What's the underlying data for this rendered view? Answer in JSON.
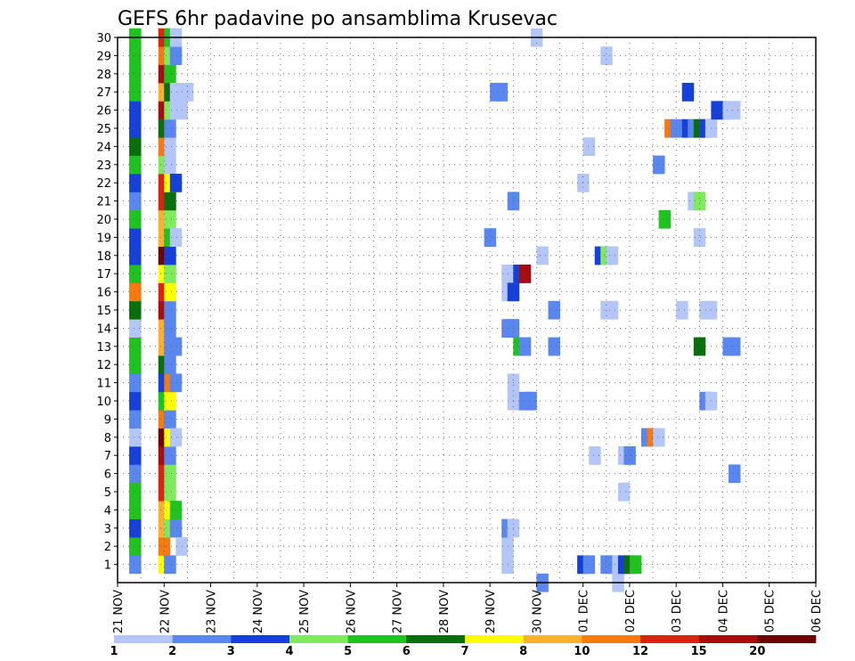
{
  "chart_data": {
    "type": "heatmap",
    "title": "GEFS 6hr padavine po ansamblima Krusevac",
    "ylim": [
      0,
      30
    ],
    "y_ticks": [
      "1",
      "2",
      "3",
      "4",
      "5",
      "6",
      "7",
      "8",
      "9",
      "10",
      "11",
      "12",
      "13",
      "14",
      "15",
      "16",
      "17",
      "18",
      "19",
      "20",
      "21",
      "22",
      "23",
      "24",
      "25",
      "26",
      "27",
      "28",
      "29",
      "30"
    ],
    "x_ticks": [
      "21 NOV",
      "22 NOV",
      "23 NOV",
      "24 NOV",
      "25 NOV",
      "26 NOV",
      "27 NOV",
      "28 NOV",
      "29 NOV",
      "30 NOV",
      "01 DEC",
      "02 DEC",
      "03 DEC",
      "04 DEC",
      "05 DEC",
      "06 DEC"
    ],
    "time_step_hours": 6,
    "grid": true,
    "colorbar": {
      "labels": [
        "1",
        "2",
        "3",
        "4",
        "5",
        "6",
        "7",
        "8",
        "10",
        "12",
        "15",
        "20"
      ],
      "colors": [
        "#b3c6f7",
        "#5a87ee",
        "#1640d8",
        "#7fea5c",
        "#1fc21f",
        "#0a6e0a",
        "#ffff00",
        "#fcb030",
        "#f57a10",
        "#d9250f",
        "#a50e0e",
        "#6b0505"
      ]
    },
    "cells": [
      [
        1,
        1,
        2
      ],
      [
        1,
        2,
        5
      ],
      [
        1,
        3,
        3
      ],
      [
        1,
        4,
        5
      ],
      [
        1,
        5,
        5
      ],
      [
        1,
        6,
        2
      ],
      [
        1,
        7,
        3
      ],
      [
        1,
        8,
        1
      ],
      [
        1,
        9,
        2
      ],
      [
        1,
        10,
        3
      ],
      [
        1,
        11,
        2
      ],
      [
        1,
        12,
        5
      ],
      [
        1,
        13,
        5
      ],
      [
        1,
        14,
        1
      ],
      [
        1,
        15,
        6
      ],
      [
        1,
        16,
        9
      ],
      [
        1,
        17,
        5
      ],
      [
        1,
        18,
        3
      ],
      [
        1,
        19,
        3
      ],
      [
        1,
        20,
        5
      ],
      [
        1,
        21,
        2
      ],
      [
        1,
        22,
        3
      ],
      [
        1,
        23,
        5
      ],
      [
        1,
        24,
        6
      ],
      [
        1,
        25,
        3
      ],
      [
        1,
        26,
        3
      ],
      [
        1,
        27,
        5
      ],
      [
        1,
        28,
        5
      ],
      [
        1,
        29,
        5
      ],
      [
        1,
        30,
        5
      ],
      [
        3.5,
        1,
        7
      ],
      [
        3.5,
        2,
        9
      ],
      [
        3.5,
        3,
        8
      ],
      [
        3.5,
        4,
        8
      ],
      [
        3.5,
        5,
        10
      ],
      [
        3.5,
        6,
        10
      ],
      [
        3.5,
        7,
        11
      ],
      [
        3.5,
        8,
        12
      ],
      [
        3.5,
        9,
        9
      ],
      [
        3.5,
        10,
        5
      ],
      [
        3.5,
        11,
        3
      ],
      [
        3.5,
        12,
        6
      ],
      [
        3.5,
        13,
        8
      ],
      [
        3.5,
        14,
        8
      ],
      [
        3.5,
        15,
        11
      ],
      [
        3.5,
        16,
        10
      ],
      [
        3.5,
        17,
        7
      ],
      [
        3.5,
        18,
        12
      ],
      [
        3.5,
        19,
        8
      ],
      [
        3.5,
        20,
        8
      ],
      [
        3.5,
        21,
        10
      ],
      [
        3.5,
        22,
        10
      ],
      [
        3.5,
        23,
        4
      ],
      [
        3.5,
        24,
        9
      ],
      [
        3.5,
        25,
        6
      ],
      [
        3.5,
        26,
        11
      ],
      [
        3.5,
        27,
        8
      ],
      [
        3.5,
        28,
        11
      ],
      [
        3.5,
        29,
        9
      ],
      [
        3.5,
        30,
        10
      ],
      [
        4,
        1,
        2
      ],
      [
        4,
        3,
        4
      ],
      [
        4,
        4,
        7
      ],
      [
        4,
        5,
        4
      ],
      [
        4,
        6,
        4
      ],
      [
        4,
        7,
        2
      ],
      [
        4,
        8,
        7
      ],
      [
        4,
        9,
        2
      ],
      [
        4,
        10,
        7
      ],
      [
        4,
        11,
        9
      ],
      [
        4,
        12,
        2
      ],
      [
        4,
        13,
        2
      ],
      [
        4,
        14,
        2
      ],
      [
        4,
        15,
        2
      ],
      [
        4,
        16,
        7
      ],
      [
        4,
        17,
        4
      ],
      [
        4,
        18,
        3
      ],
      [
        4,
        19,
        5
      ],
      [
        4,
        20,
        4
      ],
      [
        4,
        21,
        6
      ],
      [
        4,
        22,
        7
      ],
      [
        4,
        23,
        1
      ],
      [
        4,
        24,
        1
      ],
      [
        4,
        25,
        2
      ],
      [
        4,
        26,
        4
      ],
      [
        4,
        27,
        6
      ],
      [
        4,
        28,
        5
      ],
      [
        4,
        29,
        4
      ],
      [
        4,
        30,
        5
      ],
      [
        4.5,
        3,
        2
      ],
      [
        4.5,
        4,
        5
      ],
      [
        4.5,
        8,
        1
      ],
      [
        4.5,
        11,
        2
      ],
      [
        4.5,
        13,
        2
      ],
      [
        4.5,
        19,
        1
      ],
      [
        4.5,
        22,
        3
      ],
      [
        4.5,
        26,
        1
      ],
      [
        4.5,
        27,
        1
      ],
      [
        4.5,
        29,
        2
      ],
      [
        4.5,
        30,
        1
      ],
      [
        5,
        2,
        1
      ],
      [
        5,
        26,
        1
      ],
      [
        5,
        27,
        1
      ],
      [
        5.5,
        27,
        1
      ],
      [
        31.5,
        19,
        2
      ],
      [
        32,
        27,
        2
      ],
      [
        32.5,
        27,
        2
      ],
      [
        33,
        1,
        1
      ],
      [
        33,
        2,
        1
      ],
      [
        33,
        3,
        2
      ],
      [
        33,
        14,
        2
      ],
      [
        33,
        16,
        1
      ],
      [
        33,
        17,
        1
      ],
      [
        33.5,
        3,
        1
      ],
      [
        33.5,
        10,
        1
      ],
      [
        33.5,
        11,
        1
      ],
      [
        33.5,
        14,
        2
      ],
      [
        33.5,
        16,
        3
      ],
      [
        33.5,
        21,
        2
      ],
      [
        34,
        13,
        5
      ],
      [
        34,
        17,
        3
      ],
      [
        34.5,
        10,
        2
      ],
      [
        34.5,
        13,
        2
      ],
      [
        34.5,
        17,
        11
      ],
      [
        35,
        10,
        2
      ],
      [
        35.5,
        30,
        1
      ],
      [
        36,
        0,
        2
      ],
      [
        36,
        18,
        1
      ],
      [
        37,
        13,
        2
      ],
      [
        37,
        15,
        2
      ],
      [
        39.5,
        22,
        1
      ],
      [
        39.5,
        1,
        3
      ],
      [
        40,
        1,
        2
      ],
      [
        40,
        24,
        1
      ],
      [
        40.5,
        7,
        1
      ],
      [
        41,
        18,
        3
      ],
      [
        41.5,
        1,
        2
      ],
      [
        41.5,
        15,
        1
      ],
      [
        41.5,
        18,
        4
      ],
      [
        41.5,
        29,
        1
      ],
      [
        42,
        1,
        2
      ],
      [
        42,
        15,
        1
      ],
      [
        42,
        18,
        1
      ],
      [
        42.5,
        1,
        1
      ],
      [
        42.5,
        0,
        1
      ],
      [
        43,
        1,
        3
      ],
      [
        43,
        5,
        1
      ],
      [
        43,
        7,
        1
      ],
      [
        43.5,
        1,
        6
      ],
      [
        43.5,
        7,
        2
      ],
      [
        44,
        1,
        5
      ],
      [
        45,
        8,
        2
      ],
      [
        45.5,
        8,
        9
      ],
      [
        46,
        8,
        1
      ],
      [
        46,
        23,
        2
      ],
      [
        46.5,
        20,
        5
      ],
      [
        47,
        25,
        9
      ],
      [
        47.5,
        25,
        2
      ],
      [
        48,
        15,
        1
      ],
      [
        48.5,
        25,
        3
      ],
      [
        48.5,
        27,
        3
      ],
      [
        49,
        21,
        1
      ],
      [
        49,
        25,
        2
      ],
      [
        49.5,
        13,
        6
      ],
      [
        49.5,
        19,
        1
      ],
      [
        49.5,
        21,
        4
      ],
      [
        49.5,
        25,
        6
      ],
      [
        50,
        10,
        2
      ],
      [
        50,
        15,
        1
      ],
      [
        50,
        25,
        3
      ],
      [
        50.5,
        10,
        1
      ],
      [
        50.5,
        15,
        1
      ],
      [
        50.5,
        25,
        1
      ],
      [
        51,
        26,
        3
      ],
      [
        51.5,
        26,
        3
      ],
      [
        52,
        26,
        1
      ],
      [
        52,
        13,
        2
      ],
      [
        52.5,
        6,
        2
      ],
      [
        52.5,
        26,
        1
      ],
      [
        52.5,
        13,
        2
      ]
    ]
  }
}
